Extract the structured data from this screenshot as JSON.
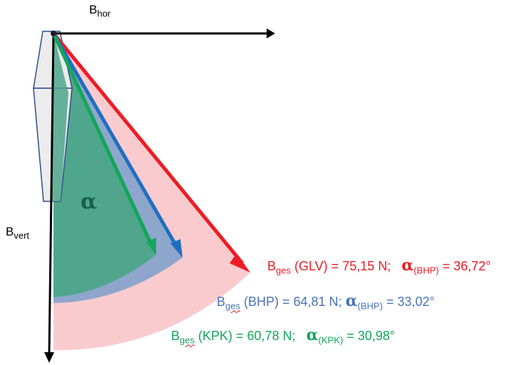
{
  "colors": {
    "glv": "#ee1c25",
    "bhp": "#4a73b8",
    "kpk": "#13a65a",
    "glv_sector": "#f9cbcf",
    "bhp_sector": "#8fa6cc",
    "kpk_sector": "#4fa68c",
    "axis": "#000000",
    "body_fill": "#ececec",
    "body_outline": "#2e4f8a",
    "alpha_label": "#16604b"
  },
  "axes": {
    "horizontal": {
      "base": "B",
      "sub": "hor"
    },
    "vertical": {
      "base": "B",
      "sub": "vert"
    }
  },
  "angle_label": "α",
  "results": [
    {
      "id": "glv",
      "base": "B",
      "sub": "ges",
      "name": "(GLV)",
      "eq1": " = ",
      "force": "75,15 N;",
      "alpha": "α",
      "alpha_sub": "(BHP)",
      "eq2": " = ",
      "angle": "36,72°",
      "angle_deg": 36.72
    },
    {
      "id": "bhp",
      "base": "B",
      "sub": "ges",
      "name": "(BHP)",
      "eq1": " = ",
      "force": "64,81 N;",
      "alpha": "α",
      "alpha_sub": "(BHP)",
      "eq2": " = ",
      "angle": "33,02°",
      "angle_deg": 33.02
    },
    {
      "id": "kpk",
      "base": "B",
      "sub": "ges",
      "name": "(KPK)",
      "eq1": " = ",
      "force": "60,78 N;",
      "alpha": "α",
      "alpha_sub": "(KPK)",
      "eq2": " = ",
      "angle": "30,98°",
      "angle_deg": 30.98
    }
  ]
}
